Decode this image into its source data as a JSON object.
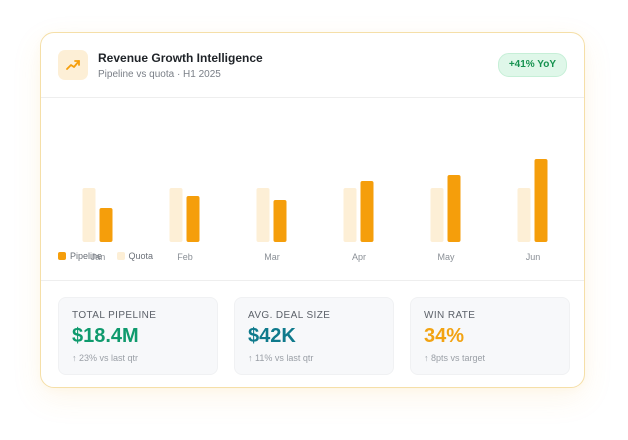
{
  "header": {
    "title": "Revenue Growth Intelligence",
    "subtitle": "Pipeline vs quota · H1 2025",
    "badge": "+41% YoY",
    "icon": "trending-up-icon",
    "colors": {
      "icon": "#f59e0b",
      "icon_bg": "#fdefd6",
      "badge_text": "#15924f",
      "badge_bg": "#dff7e9"
    }
  },
  "chart_data": {
    "type": "bar",
    "categories": [
      "Jan",
      "Feb",
      "Mar",
      "Apr",
      "May",
      "Jun"
    ],
    "series": [
      {
        "name": "Pipeline",
        "color": "#f59e0b",
        "values": [
          34,
          46,
          42,
          61,
          67,
          83
        ]
      },
      {
        "name": "Quota",
        "color": "#fdefd6",
        "values": [
          54,
          54,
          54,
          54,
          54,
          54
        ]
      }
    ],
    "ylim": [
      0,
      100
    ],
    "grid": false,
    "legend_position": "bottom-left"
  },
  "legend": [
    {
      "label": "Pipeline",
      "color": "#f59e0b"
    },
    {
      "label": "Quota",
      "color": "#fdefd6"
    }
  ],
  "stats": [
    {
      "label": "TOTAL PIPELINE",
      "value": "$18.4M",
      "change": "↑ 23% vs last qtr",
      "color": "#0f9a6d"
    },
    {
      "label": "AVG. DEAL SIZE",
      "value": "$42K",
      "change": "↑ 11% vs last qtr",
      "color": "#0f7a8c"
    },
    {
      "label": "WIN RATE",
      "value": "34%",
      "change": "↑ 8pts vs target",
      "color": "#f2a312"
    }
  ]
}
